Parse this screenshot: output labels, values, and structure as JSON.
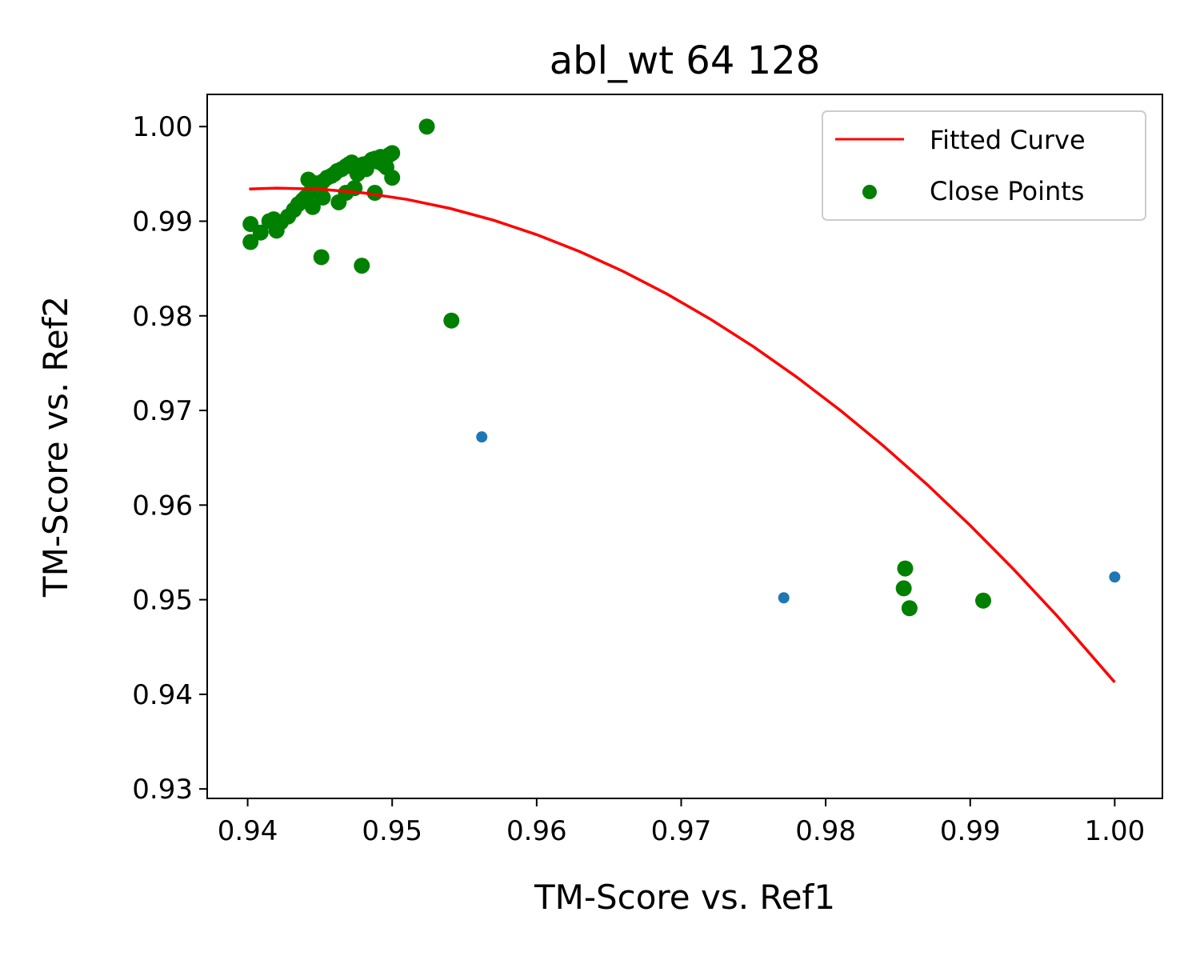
{
  "chart_data": {
    "type": "scatter",
    "title": "abl_wt 64 128",
    "xlabel": "TM-Score vs. Ref1",
    "ylabel": "TM-Score vs. Ref2",
    "xlim": [
      0.9372,
      1.0033
    ],
    "ylim": [
      0.929,
      1.0034
    ],
    "x_ticks": [
      0.94,
      0.95,
      0.96,
      0.97,
      0.98,
      0.99,
      1.0
    ],
    "x_tick_labels": [
      "0.94",
      "0.95",
      "0.96",
      "0.97",
      "0.98",
      "0.99",
      "1.00"
    ],
    "y_ticks": [
      0.93,
      0.94,
      0.95,
      0.96,
      0.97,
      0.98,
      0.99,
      1.0
    ],
    "y_tick_labels": [
      "0.93",
      "0.94",
      "0.95",
      "0.96",
      "0.97",
      "0.98",
      "0.99",
      "1.00"
    ],
    "grid": false,
    "legend": {
      "position": "top-right",
      "entries": [
        {
          "label": "Fitted Curve",
          "kind": "line",
          "color": "#ff0000"
        },
        {
          "label": "Close Points",
          "kind": "marker",
          "color": "#008000"
        }
      ]
    },
    "fitted_curve": {
      "name": "Fitted Curve",
      "color": "#ff0000",
      "x": [
        0.9401,
        0.942,
        0.945,
        0.948,
        0.951,
        0.954,
        0.957,
        0.96,
        0.963,
        0.966,
        0.969,
        0.972,
        0.975,
        0.978,
        0.981,
        0.984,
        0.987,
        0.99,
        0.993,
        0.996,
        1.0
      ],
      "y": [
        0.9934,
        0.9935,
        0.99339,
        0.99299,
        0.99231,
        0.99135,
        0.99011,
        0.98858,
        0.98678,
        0.98469,
        0.98232,
        0.97967,
        0.97674,
        0.97352,
        0.97002,
        0.96625,
        0.96219,
        0.95784,
        0.95322,
        0.94831,
        0.94128
      ]
    },
    "close_points": {
      "name": "Close Points",
      "color": "#008000",
      "x": [
        0.9524,
        0.9402,
        0.9402,
        0.9409,
        0.9415,
        0.9418,
        0.942,
        0.9423,
        0.9428,
        0.9432,
        0.9435,
        0.9438,
        0.944,
        0.9442,
        0.9443,
        0.9445,
        0.9447,
        0.945,
        0.9452,
        0.9455,
        0.9458,
        0.946,
        0.9462,
        0.9465,
        0.9468,
        0.947,
        0.9472,
        0.9474,
        0.9476,
        0.9478,
        0.948,
        0.9482,
        0.9484,
        0.9486,
        0.9488,
        0.949,
        0.9492,
        0.9494,
        0.9496,
        0.9498,
        0.95,
        0.9445,
        0.9452,
        0.9463,
        0.9468,
        0.9474,
        0.9488,
        0.95,
        0.9451,
        0.9479,
        0.9541,
        0.9855,
        0.9854,
        0.9858,
        0.9909
      ],
      "y": [
        1.0,
        0.9897,
        0.9878,
        0.9888,
        0.99,
        0.9902,
        0.989,
        0.9899,
        0.9905,
        0.9912,
        0.9918,
        0.9922,
        0.9925,
        0.9944,
        0.993,
        0.9935,
        0.994,
        0.9938,
        0.9942,
        0.9946,
        0.9948,
        0.995,
        0.9953,
        0.9955,
        0.9958,
        0.996,
        0.9962,
        0.9956,
        0.995,
        0.9958,
        0.996,
        0.9955,
        0.9962,
        0.9965,
        0.9966,
        0.9963,
        0.9968,
        0.996,
        0.9957,
        0.997,
        0.9972,
        0.9915,
        0.9925,
        0.992,
        0.993,
        0.9935,
        0.993,
        0.9946,
        0.9862,
        0.9853,
        0.9795,
        0.9533,
        0.9512,
        0.9491,
        0.9499
      ]
    },
    "other_points": {
      "color": "#1f77b4",
      "x": [
        0.9562,
        0.9771,
        1.0
      ],
      "y": [
        0.9672,
        0.9502,
        0.9524
      ]
    }
  }
}
